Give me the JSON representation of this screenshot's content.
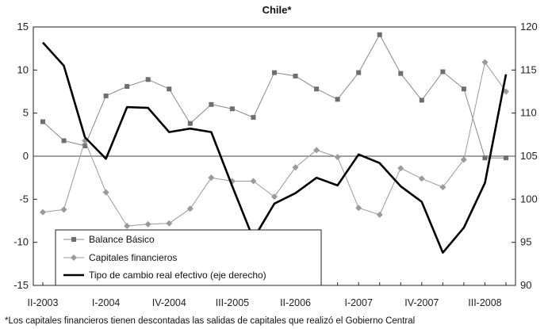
{
  "chart_data": {
    "type": "line",
    "title": "Chile*",
    "footnote": "*Los capitales financieros tienen descontadas las salidas de capitales que realizó el Gobierno Central",
    "x_tick_labels": [
      "II-2003",
      "I-2004",
      "IV-2004",
      "III-2005",
      "II-2006",
      "I-2007",
      "IV-2007",
      "III-2008"
    ],
    "x": [
      "II-2003",
      "III-2003",
      "IV-2003",
      "I-2004",
      "II-2004",
      "III-2004",
      "IV-2004",
      "I-2005",
      "II-2005",
      "III-2005",
      "IV-2005",
      "I-2006",
      "II-2006",
      "III-2006",
      "IV-2006",
      "I-2007",
      "II-2007",
      "III-2007",
      "IV-2007",
      "I-2008",
      "II-2008",
      "III-2008",
      "IV-2008"
    ],
    "y_left": {
      "range": [
        -15,
        15
      ],
      "ticks": [
        "-15",
        "-10",
        "-5",
        "0",
        "5",
        "10",
        "15"
      ]
    },
    "y_right": {
      "range": [
        90,
        120
      ],
      "ticks": [
        "90",
        "95",
        "100",
        "105",
        "110",
        "115",
        "120"
      ]
    },
    "legend_position": "bottom-left",
    "series": [
      {
        "name": "Balance Básico",
        "axis": "left",
        "marker": "square",
        "color": "#888888",
        "values": [
          4.0,
          1.8,
          1.2,
          7.0,
          8.1,
          8.9,
          7.8,
          3.8,
          6.0,
          5.5,
          4.5,
          9.7,
          9.3,
          7.8,
          6.6,
          9.7,
          14.1,
          9.6,
          6.5,
          9.8,
          7.8,
          -0.2,
          -0.2
        ]
      },
      {
        "name": "Capitales financieros",
        "axis": "left",
        "marker": "diamond",
        "color": "#999999",
        "values": [
          -6.5,
          -6.2,
          1.8,
          -4.2,
          -8.1,
          -7.9,
          -7.8,
          -6.1,
          -2.5,
          -2.9,
          -2.9,
          -4.7,
          -1.3,
          0.7,
          -0.1,
          -6.0,
          -6.8,
          -1.4,
          -2.6,
          -3.6,
          -0.4,
          10.9,
          7.5
        ]
      },
      {
        "name": "Tipo de cambio real efectivo (eje derecho)",
        "axis": "right",
        "marker": "none",
        "color": "#000000",
        "values": [
          118.2,
          115.5,
          107.2,
          104.7,
          110.7,
          110.6,
          107.8,
          108.2,
          107.8,
          101.5,
          95.4,
          99.5,
          100.7,
          102.5,
          101.6,
          105.2,
          104.2,
          101.5,
          99.7,
          93.8,
          96.7,
          101.9,
          114.5
        ]
      }
    ]
  }
}
